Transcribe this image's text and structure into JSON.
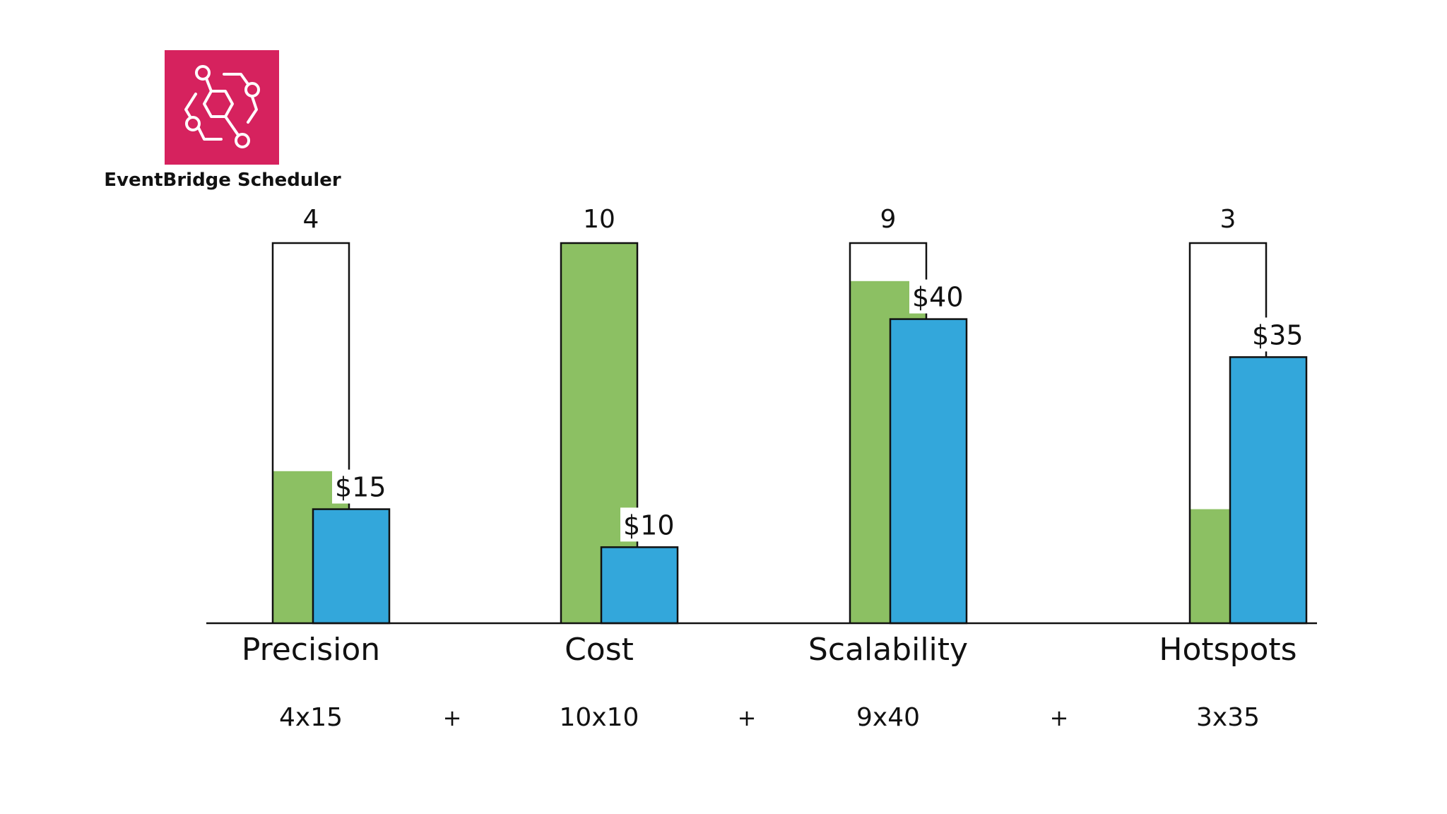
{
  "logo": {
    "caption": "EventBridge Scheduler",
    "icon": "eventbridge-scheduler-icon",
    "color": "#D6225E"
  },
  "colors": {
    "weight_fill": "#8CC063",
    "price_fill": "#33A7DB",
    "outline": "#111111"
  },
  "chart_data": {
    "type": "bar",
    "categories": [
      "Precision",
      "Cost",
      "Scalability",
      "Hotspots"
    ],
    "weight_max": 10,
    "weights": [
      4,
      10,
      9,
      3
    ],
    "weight_labels": [
      "4",
      "10",
      "9",
      "3"
    ],
    "price_max": 100,
    "prices": [
      30,
      20,
      80,
      70
    ],
    "price_labels": [
      "$15",
      "$10",
      "$40",
      "$35"
    ],
    "formulas": [
      "4x15",
      "10x10",
      "9x40",
      "3x35"
    ],
    "operators": [
      "+",
      "+",
      "+"
    ],
    "grid": false
  }
}
